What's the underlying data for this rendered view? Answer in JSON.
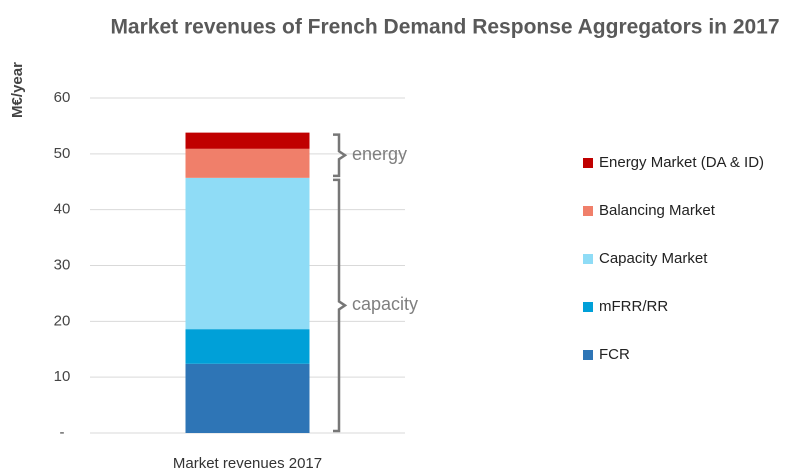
{
  "chart_data": {
    "type": "stacked-bar",
    "title": "Market revenues of French Demand Response Aggregators in 2017",
    "y_label": "M€/year",
    "categories": [
      "Market revenues 2017"
    ],
    "series": [
      {
        "name": "FCR",
        "color": "#2e75b6",
        "values": [
          12.4
        ]
      },
      {
        "name": "mFRR/RR",
        "color": "#00a0d8",
        "values": [
          6.2
        ]
      },
      {
        "name": "Capacity Market",
        "color": "#8fdcf6",
        "values": [
          27.1
        ]
      },
      {
        "name": "Balancing Market",
        "color": "#f07f6a",
        "values": [
          5.2
        ]
      },
      {
        "name": "Energy Market (DA & ID)",
        "color": "#c00000",
        "values": [
          2.9
        ]
      }
    ],
    "annotations": [
      "energy",
      "capacity"
    ],
    "ylim": [
      0,
      60
    ],
    "yticks": [
      {
        "value": 0,
        "label": "-"
      },
      10,
      20,
      30,
      40,
      50,
      60
    ],
    "grid": true,
    "legend": "right"
  }
}
